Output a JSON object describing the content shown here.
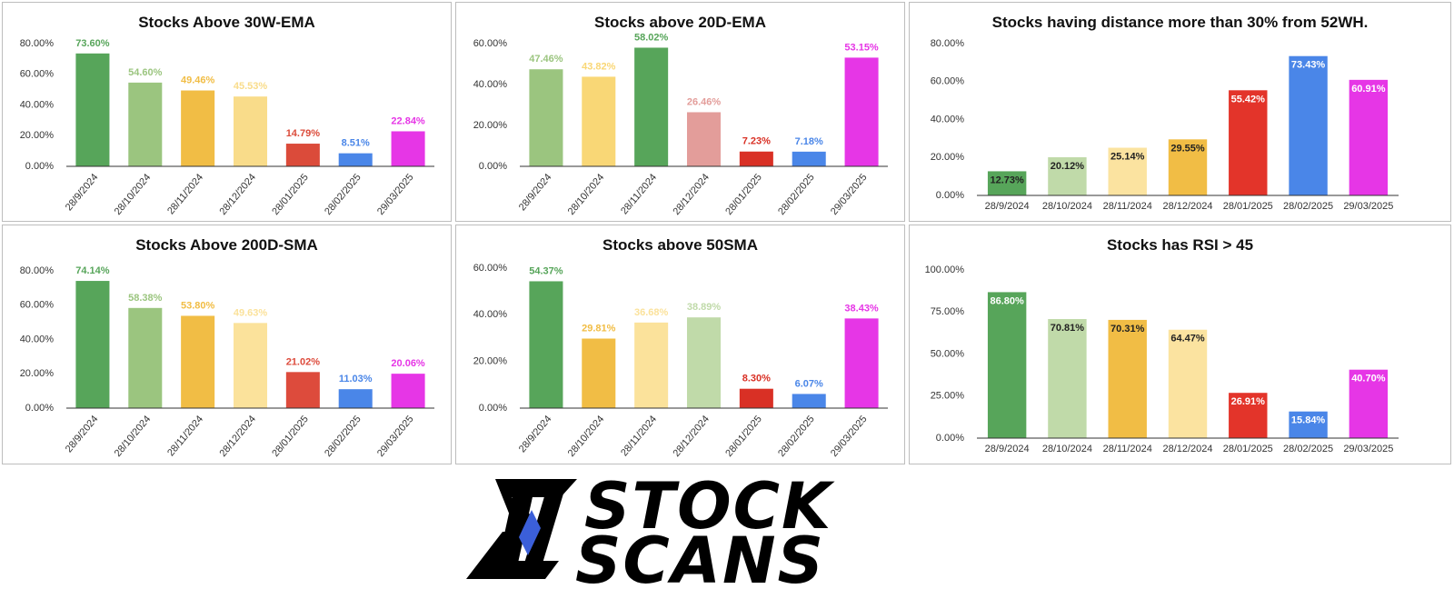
{
  "chart_data": [
    {
      "type": "bar",
      "title": "Stocks Above 30W-EMA",
      "categories": [
        "28/9/2024",
        "28/10/2024",
        "28/11/2024",
        "28/12/2024",
        "28/01/2025",
        "28/02/2025",
        "29/03/2025"
      ],
      "values": [
        73.6,
        54.6,
        49.46,
        45.53,
        14.79,
        8.51,
        22.84
      ],
      "value_labels": [
        "73.60%",
        "54.60%",
        "49.46%",
        "45.53%",
        "14.79%",
        "8.51%",
        "22.84%"
      ],
      "colors": [
        "#57a55a",
        "#9bc57f",
        "#f1bd45",
        "#f9dc8a",
        "#db4b3a",
        "#4a86e8",
        "#e636e6"
      ],
      "label_position": "above",
      "rotate_x_labels": true,
      "ylim": [
        0,
        80
      ],
      "yticks": [
        {
          "value": 0,
          "label": "0.00%"
        },
        {
          "value": 20,
          "label": "20.00%"
        },
        {
          "value": 40,
          "label": "40.00%"
        },
        {
          "value": 60,
          "label": "60.00%"
        },
        {
          "value": 80,
          "label": "80.00%"
        }
      ]
    },
    {
      "type": "bar",
      "title": "Stocks above 20D-EMA",
      "categories": [
        "28/9/2024",
        "28/10/2024",
        "28/11/2024",
        "28/12/2024",
        "28/01/2025",
        "28/02/2025",
        "29/03/2025"
      ],
      "values": [
        47.46,
        43.82,
        58.02,
        26.46,
        7.23,
        7.18,
        53.15
      ],
      "value_labels": [
        "47.46%",
        "43.82%",
        "58.02%",
        "26.46%",
        "7.23%",
        "7.18%",
        "53.15%"
      ],
      "colors": [
        "#9bc57f",
        "#f9d776",
        "#57a55a",
        "#e39d9a",
        "#d93025",
        "#4a86e8",
        "#e636e6"
      ],
      "label_position": "above",
      "rotate_x_labels": true,
      "ylim": [
        0,
        60
      ],
      "yticks": [
        {
          "value": 0,
          "label": "0.00%"
        },
        {
          "value": 20,
          "label": "20.00%"
        },
        {
          "value": 40,
          "label": "40.00%"
        },
        {
          "value": 60,
          "label": "60.00%"
        }
      ]
    },
    {
      "type": "bar",
      "title": "Stocks having distance more than 30% from 52WH.",
      "categories": [
        "28/9/2024",
        "28/10/2024",
        "28/11/2024",
        "28/12/2024",
        "28/01/2025",
        "28/02/2025",
        "29/03/2025"
      ],
      "values": [
        12.73,
        20.12,
        25.14,
        29.55,
        55.42,
        73.43,
        60.91
      ],
      "value_labels": [
        "12.73%",
        "20.12%",
        "25.14%",
        "29.55%",
        "55.42%",
        "73.43%",
        "60.91%"
      ],
      "colors": [
        "#57a55a",
        "#c0daa9",
        "#fbe3a0",
        "#f1bd45",
        "#e3342a",
        "#4a86e8",
        "#e636e6"
      ],
      "label_colors": [
        "#222222",
        "#222222",
        "#222222",
        "#222222",
        "#ffffff",
        "#ffffff",
        "#ffffff"
      ],
      "label_position": "inside",
      "rotate_x_labels": false,
      "ylim": [
        0,
        80
      ],
      "yticks": [
        {
          "value": 0,
          "label": "0.00%"
        },
        {
          "value": 20,
          "label": "20.00%"
        },
        {
          "value": 40,
          "label": "40.00%"
        },
        {
          "value": 60,
          "label": "60.00%"
        },
        {
          "value": 80,
          "label": "80.00%"
        }
      ]
    },
    {
      "type": "bar",
      "title": "Stocks Above 200D-SMA",
      "categories": [
        "28/9/2024",
        "28/10/2024",
        "28/11/2024",
        "28/12/2024",
        "28/01/2025",
        "28/02/2025",
        "29/03/2025"
      ],
      "values": [
        74.14,
        58.38,
        53.8,
        49.63,
        21.02,
        11.03,
        20.06
      ],
      "value_labels": [
        "74.14%",
        "58.38%",
        "53.80%",
        "49.63%",
        "21.02%",
        "11.03%",
        "20.06%"
      ],
      "colors": [
        "#57a55a",
        "#9bc57f",
        "#f1bd45",
        "#fbe29b",
        "#dd4b3c",
        "#4a86e8",
        "#e636e6"
      ],
      "label_position": "above",
      "rotate_x_labels": true,
      "ylim": [
        0,
        80
      ],
      "yticks": [
        {
          "value": 0,
          "label": "0.00%"
        },
        {
          "value": 20,
          "label": "20.00%"
        },
        {
          "value": 40,
          "label": "40.00%"
        },
        {
          "value": 60,
          "label": "60.00%"
        },
        {
          "value": 80,
          "label": "80.00%"
        }
      ]
    },
    {
      "type": "bar",
      "title": "Stocks above 50SMA",
      "categories": [
        "28/9/2024",
        "28/10/2024",
        "28/11/2024",
        "28/12/2024",
        "28/01/2025",
        "28/02/2025",
        "29/03/2025"
      ],
      "values": [
        54.37,
        29.81,
        36.68,
        38.89,
        8.3,
        6.07,
        38.43
      ],
      "value_labels": [
        "54.37%",
        "29.81%",
        "36.68%",
        "38.89%",
        "8.30%",
        "6.07%",
        "38.43%"
      ],
      "colors": [
        "#57a55a",
        "#f1bd45",
        "#fbe29b",
        "#c0daa9",
        "#d93025",
        "#4a86e8",
        "#e636e6"
      ],
      "label_position": "above",
      "rotate_x_labels": true,
      "ylim": [
        0,
        60
      ],
      "yticks": [
        {
          "value": 0,
          "label": "0.00%"
        },
        {
          "value": 20,
          "label": "20.00%"
        },
        {
          "value": 40,
          "label": "40.00%"
        },
        {
          "value": 60,
          "label": "60.00%"
        }
      ]
    },
    {
      "type": "bar",
      "title": "Stocks has RSI > 45",
      "categories": [
        "28/9/2024",
        "28/10/2024",
        "28/11/2024",
        "28/12/2024",
        "28/01/2025",
        "28/02/2025",
        "29/03/2025"
      ],
      "values": [
        86.8,
        70.81,
        70.31,
        64.47,
        26.91,
        15.84,
        40.7
      ],
      "value_labels": [
        "86.80%",
        "70.81%",
        "70.31%",
        "64.47%",
        "26.91%",
        "15.84%",
        "40.70%"
      ],
      "colors": [
        "#57a55a",
        "#c0daa9",
        "#f1bd45",
        "#fbe3a0",
        "#e3342a",
        "#4a86e8",
        "#e636e6"
      ],
      "label_colors": [
        "#ffffff",
        "#222222",
        "#222222",
        "#222222",
        "#ffffff",
        "#ffffff",
        "#ffffff"
      ],
      "label_position": "inside",
      "rotate_x_labels": false,
      "ylim": [
        0,
        100
      ],
      "yticks": [
        {
          "value": 0,
          "label": "0.00%"
        },
        {
          "value": 25,
          "label": "25.00%"
        },
        {
          "value": 50,
          "label": "50.00%"
        },
        {
          "value": 75,
          "label": "75.00%"
        },
        {
          "value": 100,
          "label": "100.00%"
        }
      ]
    }
  ],
  "logo": {
    "line1": "STOCK",
    "line2": "SCANS"
  }
}
